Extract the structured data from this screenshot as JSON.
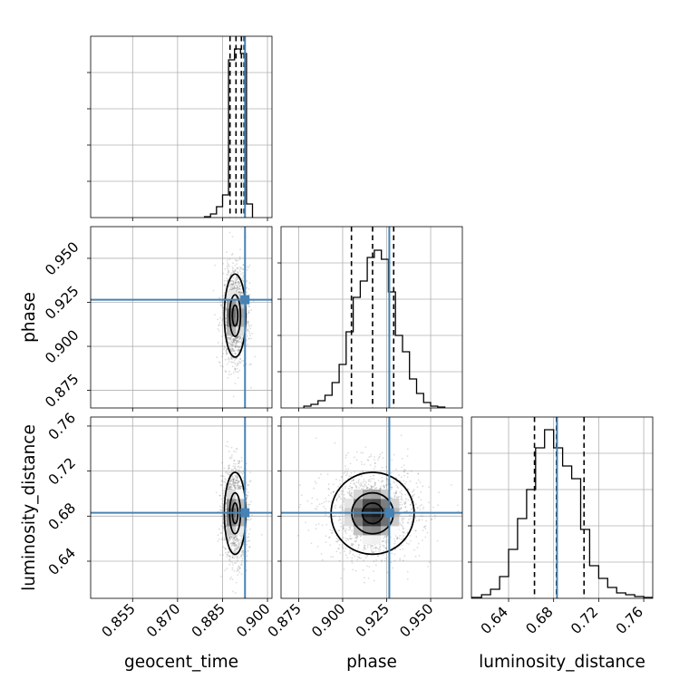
{
  "chart_data": {
    "type": "corner",
    "parameters": [
      {
        "label": "geocent_time",
        "range": [
          0.841,
          0.9015
        ],
        "ticks": [
          0.855,
          0.87,
          0.885,
          0.9
        ],
        "tick_labels": [
          "0.855",
          "0.870",
          "0.885",
          "0.900"
        ]
      },
      {
        "label": "phase",
        "range": [
          0.865,
          0.968
        ],
        "ticks": [
          0.875,
          0.9,
          0.925,
          0.95
        ],
        "tick_labels": [
          "0.875",
          "0.900",
          "0.925",
          "0.950"
        ]
      },
      {
        "label": "luminosity_distance",
        "range": [
          0.607,
          0.768
        ],
        "ticks": [
          0.64,
          0.68,
          0.72,
          0.76
        ],
        "tick_labels": [
          "0.64",
          "0.68",
          "0.72",
          "0.76"
        ]
      }
    ],
    "truths": {
      "geocent_time": 0.8925,
      "phase": 0.9265,
      "luminosity_distance": 0.683
    },
    "truth_color": "#4682b4",
    "quantiles": {
      "geocent_time": [
        0.8875,
        0.8895,
        0.8913,
        0.8922
      ],
      "phase": [
        0.905,
        0.917,
        0.929
      ],
      "luminosity_distance": [
        0.663,
        0.6825,
        0.707
      ]
    },
    "histograms": {
      "geocent_time": {
        "edges": [
          0.879,
          0.881,
          0.883,
          0.885,
          0.887,
          0.889,
          0.891,
          0.893,
          0.895
        ],
        "counts": [
          0.005,
          0.02,
          0.06,
          0.125,
          0.87,
          0.93,
          0.905,
          0.075
        ]
      },
      "phase": {
        "edges": [
          0.878,
          0.882,
          0.886,
          0.89,
          0.894,
          0.898,
          0.902,
          0.906,
          0.91,
          0.914,
          0.918,
          0.922,
          0.926,
          0.93,
          0.934,
          0.938,
          0.942,
          0.946,
          0.95,
          0.954,
          0.958
        ],
        "counts": [
          0.01,
          0.02,
          0.04,
          0.07,
          0.14,
          0.24,
          0.42,
          0.61,
          0.7,
          0.83,
          0.87,
          0.82,
          0.64,
          0.4,
          0.31,
          0.16,
          0.08,
          0.03,
          0.01,
          0.005
        ]
      },
      "luminosity_distance": {
        "edges": [
          0.607,
          0.616,
          0.624,
          0.632,
          0.64,
          0.648,
          0.656,
          0.664,
          0.672,
          0.68,
          0.688,
          0.696,
          0.704,
          0.712,
          0.72,
          0.728,
          0.736,
          0.744,
          0.752,
          0.76,
          0.768
        ],
        "counts": [
          0.005,
          0.02,
          0.05,
          0.12,
          0.27,
          0.44,
          0.6,
          0.83,
          0.93,
          0.83,
          0.73,
          0.66,
          0.38,
          0.18,
          0.11,
          0.06,
          0.03,
          0.02,
          0.01,
          0.005
        ]
      }
    },
    "posterior_2d": {
      "phase_vs_geocent_time": {
        "center": [
          0.8892,
          0.9175
        ],
        "sigma": [
          0.0018,
          0.0118
        ],
        "contour_levels": [
          0.5,
          1.0,
          2.0
        ]
      },
      "luminosity_distance_vs_geocent_time": {
        "center": [
          0.8892,
          0.6825
        ],
        "sigma": [
          0.0018,
          0.0182
        ],
        "contour_levels": [
          0.5,
          1.0,
          2.0
        ]
      },
      "luminosity_distance_vs_phase": {
        "center": [
          0.917,
          0.6825
        ],
        "sigma": [
          0.0118,
          0.0182
        ],
        "contour_levels": [
          0.5,
          1.0,
          2.0
        ]
      }
    },
    "grid": true
  }
}
